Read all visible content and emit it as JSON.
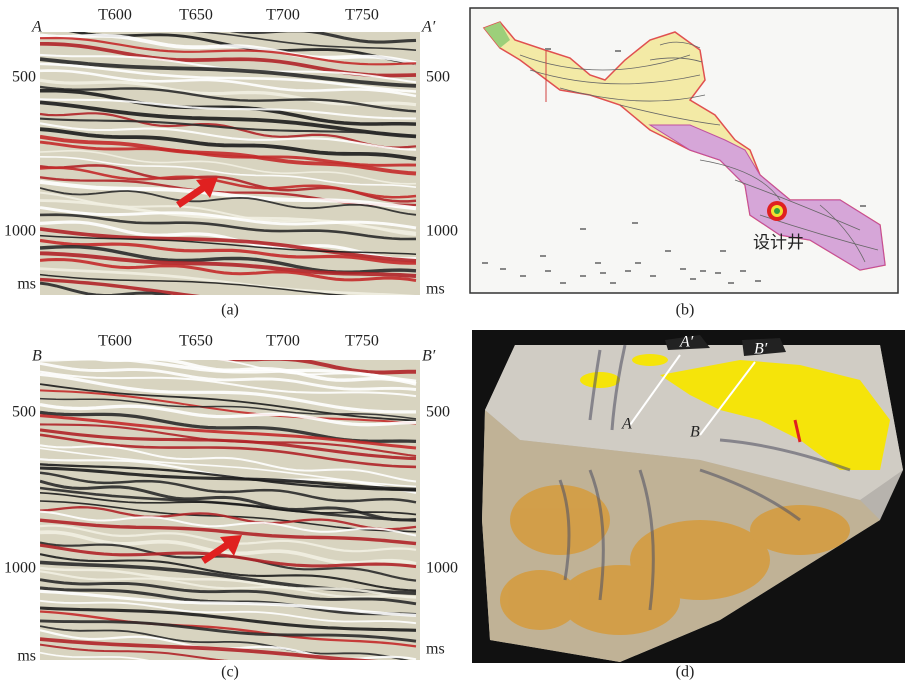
{
  "panels": [
    {
      "caption": "(a)",
      "left_label": "A",
      "right_label": "A′",
      "top_ticks": [
        "T600",
        "T650",
        "T700",
        "T750"
      ],
      "left_ticks": [
        "500",
        "1000",
        "ms"
      ],
      "right_ticks": [
        "500",
        "1000",
        "ms"
      ]
    },
    {
      "caption": "(b)",
      "well_label": "设计井"
    },
    {
      "caption": "(c)",
      "left_label": "B",
      "right_label": "B′",
      "top_ticks": [
        "T600",
        "T650",
        "T700",
        "T750"
      ],
      "left_ticks": [
        "500",
        "1000",
        "ms"
      ],
      "right_ticks": [
        "500",
        "1000",
        "ms"
      ]
    },
    {
      "caption": "(d)",
      "markers": [
        "A′",
        "B′",
        "A",
        "B"
      ]
    }
  ]
}
